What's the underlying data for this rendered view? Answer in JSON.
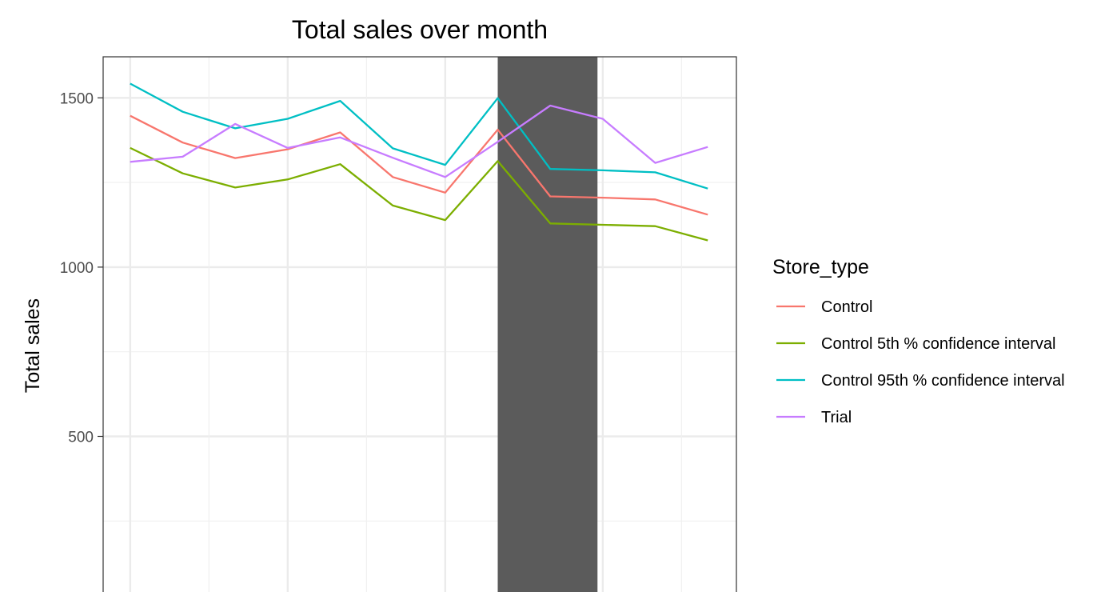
{
  "chart_data": {
    "type": "line",
    "title": "Total sales over month",
    "xlabel": "",
    "ylabel": "Total sales",
    "x_index": [
      1,
      2,
      3,
      4,
      5,
      6,
      7,
      8,
      9,
      10,
      11,
      12
    ],
    "x_tick_labels": [],
    "y_ticks": [
      500,
      1000,
      1500
    ],
    "ylim": [
      0,
      1620
    ],
    "grid": true,
    "highlight_band": {
      "x_start": 8,
      "x_end": 9.9,
      "color": "#5b5b5b"
    },
    "legend": {
      "title": "Store_type",
      "position": "right"
    },
    "series": [
      {
        "name": "Control",
        "color": "#f8766d",
        "values": [
          1447,
          1368,
          1322,
          1348,
          1398,
          1266,
          1220,
          1406,
          1209,
          1205,
          1200,
          1155
        ]
      },
      {
        "name": "Control 5th % confidence interval",
        "color": "#7cae00",
        "values": [
          1352,
          1277,
          1235,
          1259,
          1304,
          1182,
          1139,
          1313,
          1129,
          1125,
          1121,
          1079
        ]
      },
      {
        "name": "Control 95th % confidence interval",
        "color": "#00bfc4",
        "values": [
          1542,
          1459,
          1410,
          1438,
          1491,
          1351,
          1302,
          1499,
          1290,
          1286,
          1280,
          1232
        ]
      },
      {
        "name": "Trial",
        "color": "#c77cff",
        "values": [
          1311,
          1326,
          1423,
          1352,
          1383,
          1323,
          1266,
          1370,
          1477,
          1438,
          1308,
          1355
        ]
      }
    ]
  }
}
